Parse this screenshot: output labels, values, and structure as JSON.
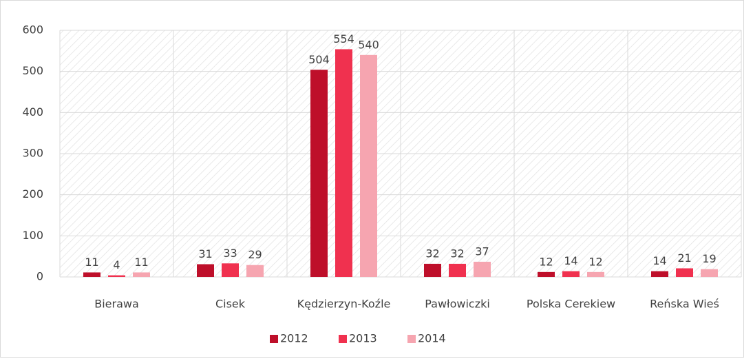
{
  "chart_data": {
    "type": "bar",
    "categories": [
      "Bierawa",
      "Cisek",
      "Kędzierzyn-Koźle",
      "Pawłowiczki",
      "Polska Cerekiew",
      "Reńska Wieś"
    ],
    "series": [
      {
        "name": "2012",
        "color": "#be0f2a",
        "values": [
          11,
          31,
          504,
          32,
          12,
          14
        ]
      },
      {
        "name": "2013",
        "color": "#f0314f",
        "values": [
          4,
          33,
          554,
          32,
          14,
          21
        ]
      },
      {
        "name": "2014",
        "color": "#f6a5b0",
        "values": [
          11,
          29,
          540,
          37,
          12,
          19
        ]
      }
    ],
    "ylim": [
      0,
      600
    ],
    "yticks": [
      0,
      100,
      200,
      300,
      400,
      500,
      600
    ],
    "grid": true,
    "legend": "bottom"
  }
}
